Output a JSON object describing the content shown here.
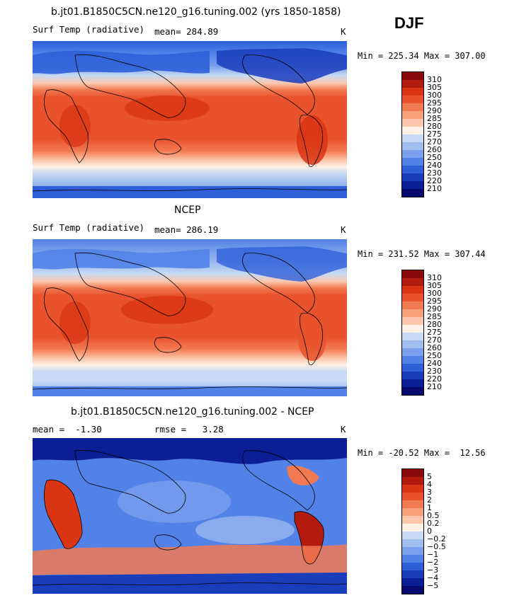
{
  "season": "DJF",
  "panels": [
    {
      "title": "b.jt01.B1850C5CN.ne120_g16.tuning.002 (yrs 1850-1858)",
      "variable": "Surf Temp (radiative)",
      "stat1": "mean= 284.89",
      "stat2": "",
      "units": "K",
      "minmax": "Min = 225.34 Max = 307.00",
      "levels": [
        "310",
        "305",
        "300",
        "295",
        "290",
        "285",
        "280",
        "275",
        "270",
        "260",
        "250",
        "240",
        "230",
        "220",
        "210"
      ]
    },
    {
      "title": "NCEP",
      "variable": "Surf Temp (radiative)",
      "stat1": "mean= 286.19",
      "stat2": "",
      "units": "K",
      "minmax": "Min = 231.52 Max = 307.44",
      "levels": [
        "310",
        "305",
        "300",
        "295",
        "290",
        "285",
        "280",
        "275",
        "270",
        "260",
        "250",
        "240",
        "230",
        "220",
        "210"
      ]
    },
    {
      "title": "b.jt01.B1850C5CN.ne120_g16.tuning.002 - NCEP",
      "variable": "mean =  -1.30",
      "stat1": "rmse =   3.28",
      "stat2": "",
      "units": "K",
      "minmax": "Min = -20.52 Max =  12.56",
      "levels": [
        "5",
        "4",
        "3",
        "2",
        "1",
        "0.5",
        "0.2",
        "0",
        "−0.2",
        "−0.5",
        "−1",
        "−2",
        "−3",
        "−4",
        "−5"
      ]
    }
  ],
  "colorbar_colors": [
    "#8b0a0a",
    "#b31a0e",
    "#d93414",
    "#e8522c",
    "#f27a52",
    "#f8a07c",
    "#fbc6ac",
    "#fdf0e4",
    "#c8daf4",
    "#a0bdf0",
    "#7aa0ec",
    "#5282e8",
    "#2e5fd8",
    "#1a3dbc",
    "#0c1e94",
    "#060a6e"
  ]
}
